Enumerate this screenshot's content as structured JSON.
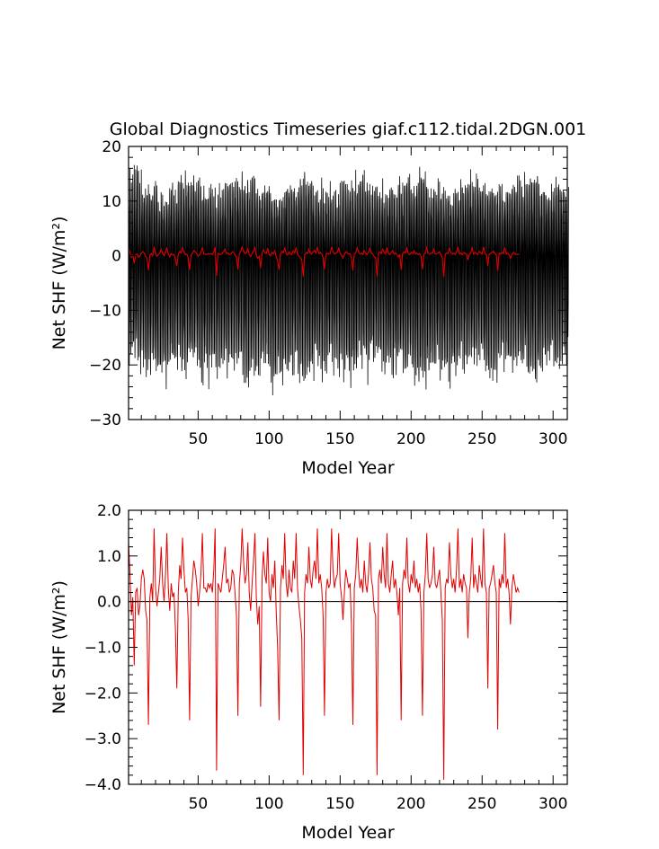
{
  "title": "Global Diagnostics Timeseries giaf.c112.tidal.2DGN.001",
  "colors": {
    "monthly": "#000000",
    "annual": "#e00000",
    "zero_line": "#000000"
  },
  "chart_data": [
    {
      "type": "line",
      "title": "Global Diagnostics Timeseries giaf.c112.tidal.2DGN.001",
      "xlabel": "Model Year",
      "ylabel": "Net SHF (W/m²)",
      "xlim": [
        1,
        310
      ],
      "ylim": [
        -30,
        20
      ],
      "xticks": [
        50,
        100,
        150,
        200,
        250,
        300
      ],
      "yticks": [
        -30,
        -20,
        -10,
        0,
        10,
        20
      ],
      "grid": false,
      "series": [
        {
          "color": "#000000",
          "style": "monthly mean, dense seasonal cycle",
          "envelope_max": [
            15.5,
            13,
            12,
            14,
            15,
            13,
            12,
            14,
            15,
            13,
            12,
            14,
            15,
            13,
            12,
            14,
            15,
            13,
            12,
            14,
            15,
            13,
            12,
            14,
            15,
            13,
            12,
            14,
            15,
            13,
            14
          ],
          "envelope_min": [
            -20,
            -22,
            -23,
            -22,
            -21,
            -23,
            -22,
            -21,
            -23,
            -22,
            -24,
            -22,
            -23,
            -22,
            -21,
            -23,
            -22,
            -21,
            -23,
            -22,
            -24,
            -22,
            -23,
            -22,
            -21,
            -23,
            -22,
            -21,
            -23,
            -22,
            -21
          ]
        },
        {
          "color": "#e00000",
          "style": "annual mean",
          "ref": "second panel values"
        }
      ]
    },
    {
      "type": "line",
      "xlabel": "Model Year",
      "ylabel": "Net SHF (W/m²)",
      "xlim": [
        1,
        310
      ],
      "ylim": [
        -4.0,
        2.0
      ],
      "xticks": [
        50,
        100,
        150,
        200,
        250,
        300
      ],
      "yticks": [
        "-4.0",
        "-3.0",
        "-2.0",
        "-1.0",
        "0.0",
        "1.0",
        "2.0"
      ],
      "grid": false,
      "series": [
        {
          "color": "#e00000",
          "x_start": 1,
          "x_step": 1,
          "values": [
            1.3,
            0.6,
            -0.3,
            0.1,
            -1.4,
            0.2,
            0.3,
            -0.3,
            -0.1,
            0.5,
            0.7,
            0.5,
            -0.2,
            -0.4,
            -2.7,
            0.1,
            0.4,
            0.0,
            1.6,
            0.3,
            -0.1,
            0.2,
            0.5,
            1.2,
            0.4,
            0.0,
            0.6,
            1.5,
            0.3,
            -0.2,
            0.4,
            0.1,
            0.2,
            -0.6,
            -1.9,
            0.2,
            0.8,
            0.5,
            1.4,
            0.7,
            0.2,
            0.3,
            -0.4,
            -2.6,
            0.1,
            0.5,
            0.9,
            0.7,
            0.4,
            -0.1,
            0.2,
            0.6,
            1.5,
            0.3,
            0.3,
            0.2,
            0.4,
            0.3,
            0.4,
            0.2,
            0.7,
            1.6,
            -3.7,
            0.4,
            0.3,
            0.2,
            0.5,
            0.8,
            1.2,
            0.4,
            0.5,
            0.2,
            0.3,
            0.7,
            0.6,
            0.2,
            -0.3,
            -2.5,
            0.4,
            0.8,
            1.6,
            0.9,
            0.4,
            0.6,
            1.3,
            0.2,
            -0.2,
            0.4,
            0.9,
            1.5,
            0.1,
            -0.5,
            -0.1,
            -2.3,
            0.5,
            1.1,
            0.6,
            0.4,
            1.4,
            0.2,
            0.0,
            0.6,
            0.3,
            0.9,
            -0.2,
            -1.0,
            -2.6,
            0.3,
            0.8,
            0.5,
            1.5,
            0.4,
            0.1,
            0.7,
            0.3,
            0.2,
            0.9,
            0.5,
            1.5,
            0.3,
            -0.1,
            -0.4,
            -0.8,
            -3.8,
            0.2,
            0.6,
            0.4,
            1.2,
            0.5,
            0.3,
            0.7,
            0.9,
            0.5,
            1.6,
            0.4,
            0.6,
            0.3,
            -0.3,
            -2.5,
            0.2,
            0.5,
            0.3,
            0.4,
            1.6,
            0.7,
            0.3,
            0.5,
            0.6,
            1.5,
            0.4,
            0.1,
            -0.4,
            0.2,
            0.7,
            0.5,
            0.3,
            0.4,
            -0.5,
            -2.7,
            0.3,
            0.6,
            1.4,
            0.7,
            0.3,
            0.5,
            0.2,
            0.9,
            0.4,
            0.2,
            0.6,
            1.3,
            0.5,
            0.3,
            -0.2,
            -0.3,
            -3.8,
            0.5,
            0.7,
            0.4,
            1.2,
            0.6,
            0.3,
            1.5,
            0.4,
            0.2,
            0.6,
            0.9,
            0.3,
            0.5,
            0.2,
            -0.3,
            0.3,
            -2.6,
            0.4,
            0.7,
            0.5,
            1.4,
            0.4,
            0.2,
            0.6,
            0.4,
            0.9,
            0.3,
            0.5,
            0.2,
            0.4,
            -0.2,
            -2.5,
            0.2,
            0.6,
            1.5,
            0.5,
            0.3,
            0.4,
            0.6,
            1.2,
            0.4,
            0.3,
            0.5,
            0.7,
            0.2,
            -0.4,
            -3.9,
            0.3,
            0.5,
            0.4,
            1.3,
            0.6,
            0.3,
            0.5,
            0.2,
            0.7,
            1.6,
            0.3,
            0.5,
            0.2,
            0.6,
            0.4,
            0.3,
            -0.8,
            0.2,
            0.5,
            1.4,
            0.3,
            0.6,
            0.4,
            0.2,
            0.8,
            0.5,
            0.3,
            1.6,
            0.4,
            0.2,
            -1.9,
            0.3,
            0.4,
            0.6,
            0.8,
            0.4,
            0.2,
            -2.8,
            0.5,
            0.3,
            0.6,
            0.4,
            1.5,
            0.3,
            0.5,
            0.2,
            -0.5,
            0.3,
            0.6,
            0.4,
            0.2,
            0.3,
            0.2
          ]
        }
      ],
      "zero_line": 0.0
    }
  ]
}
